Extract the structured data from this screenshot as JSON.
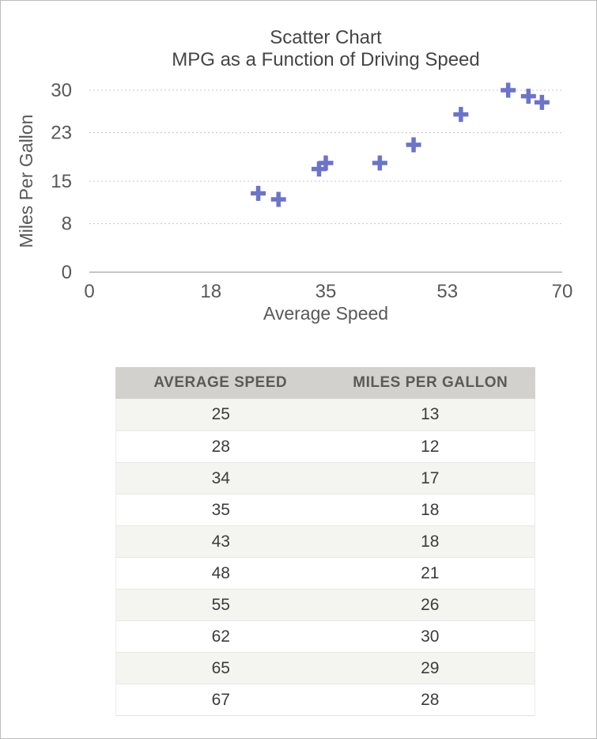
{
  "chart_data": {
    "type": "scatter",
    "title": "Scatter Chart",
    "subtitle": "MPG as a Function of Driving Speed",
    "xlabel": "Average Speed",
    "ylabel": "Miles Per Gallon",
    "xlim": [
      0,
      70
    ],
    "ylim": [
      0,
      30
    ],
    "xticks": [
      0,
      18,
      35,
      53,
      70
    ],
    "yticks": [
      0,
      8,
      15,
      23,
      30
    ],
    "grid": "horizontal-dotted",
    "legend": "none",
    "marker": "plus",
    "marker_color": "#6b74c9",
    "gridline_color": "#c7c7c7",
    "axis_line_color": "#b3b3b3",
    "points": [
      {
        "x": 25,
        "y": 13
      },
      {
        "x": 28,
        "y": 12
      },
      {
        "x": 34,
        "y": 17
      },
      {
        "x": 35,
        "y": 18
      },
      {
        "x": 43,
        "y": 18
      },
      {
        "x": 48,
        "y": 21
      },
      {
        "x": 55,
        "y": 26
      },
      {
        "x": 62,
        "y": 30
      },
      {
        "x": 65,
        "y": 29
      },
      {
        "x": 67,
        "y": 28
      }
    ]
  },
  "table": {
    "columns": [
      "AVERAGE SPEED",
      "MILES PER GALLON"
    ],
    "rows": [
      [
        "25",
        "13"
      ],
      [
        "28",
        "12"
      ],
      [
        "34",
        "17"
      ],
      [
        "35",
        "18"
      ],
      [
        "43",
        "18"
      ],
      [
        "48",
        "21"
      ],
      [
        "55",
        "26"
      ],
      [
        "62",
        "30"
      ],
      [
        "65",
        "29"
      ],
      [
        "67",
        "28"
      ]
    ],
    "header_bg": "#d2d1cd",
    "alt_row_bg": "#f4f4f1"
  }
}
